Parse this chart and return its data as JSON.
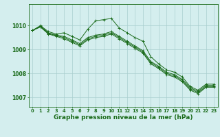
{
  "background_color": "#d4eeee",
  "grid_color": "#aacfcf",
  "line_color": "#1a6b1a",
  "xlabel": "Graphe pression niveau de la mer (hPa)",
  "xlabel_fontsize": 6.5,
  "yticks": [
    1007,
    1008,
    1009,
    1010
  ],
  "xticks": [
    0,
    1,
    2,
    3,
    4,
    5,
    6,
    7,
    8,
    9,
    10,
    11,
    12,
    13,
    14,
    15,
    16,
    17,
    18,
    19,
    20,
    21,
    22,
    23
  ],
  "xlim": [
    -0.5,
    23.5
  ],
  "ylim": [
    1006.6,
    1010.9
  ],
  "series": [
    [
      1009.8,
      1010.0,
      1009.75,
      1009.65,
      1009.7,
      1009.55,
      1009.4,
      1009.85,
      1010.2,
      1010.25,
      1010.3,
      1009.9,
      1009.7,
      1009.5,
      1009.35,
      1008.7,
      1008.4,
      1008.15,
      1008.05,
      1007.85,
      1007.45,
      1007.3,
      1007.55,
      1007.55
    ],
    [
      1009.8,
      1009.98,
      1009.7,
      1009.6,
      1009.55,
      1009.4,
      1009.25,
      1009.5,
      1009.6,
      1009.65,
      1009.75,
      1009.55,
      1009.35,
      1009.15,
      1008.95,
      1008.5,
      1008.3,
      1008.05,
      1007.95,
      1007.75,
      1007.4,
      1007.25,
      1007.5,
      1007.5
    ],
    [
      1009.8,
      1009.96,
      1009.68,
      1009.58,
      1009.5,
      1009.35,
      1009.2,
      1009.45,
      1009.55,
      1009.6,
      1009.7,
      1009.5,
      1009.3,
      1009.1,
      1008.9,
      1008.45,
      1008.25,
      1008.0,
      1007.9,
      1007.7,
      1007.35,
      1007.2,
      1007.45,
      1007.45
    ],
    [
      1009.8,
      1009.94,
      1009.65,
      1009.55,
      1009.45,
      1009.3,
      1009.15,
      1009.4,
      1009.5,
      1009.55,
      1009.65,
      1009.45,
      1009.25,
      1009.05,
      1008.85,
      1008.4,
      1008.2,
      1007.95,
      1007.85,
      1007.65,
      1007.3,
      1007.15,
      1007.42,
      1007.42
    ]
  ]
}
